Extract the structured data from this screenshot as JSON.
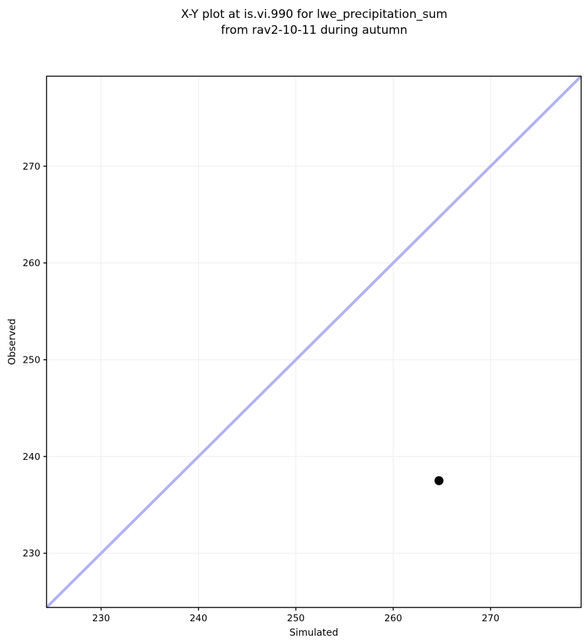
{
  "chart_data": {
    "type": "scatter",
    "title_line1": "X-Y plot at is.vi.990 for lwe_precipitation_sum",
    "title_line2": "from rav2-10-11 during autumn",
    "xlabel": "Simulated",
    "ylabel": "Observed",
    "xlim": [
      224.4,
      279.3
    ],
    "ylim": [
      224.4,
      279.3
    ],
    "xticks": [
      230,
      240,
      250,
      260,
      270
    ],
    "yticks": [
      230,
      240,
      250,
      260,
      270
    ],
    "grid": true,
    "legend": "none",
    "points": [
      {
        "x": 264.7,
        "y": 237.5
      }
    ],
    "identity_line": {
      "x1": 224.4,
      "y1": 224.4,
      "x2": 279.3,
      "y2": 279.3
    },
    "colors": {
      "point": "#000000",
      "identity_line": "#b1b2f2",
      "grid": "#f0f0f0",
      "spine": "#000000",
      "text": "#000000"
    }
  }
}
